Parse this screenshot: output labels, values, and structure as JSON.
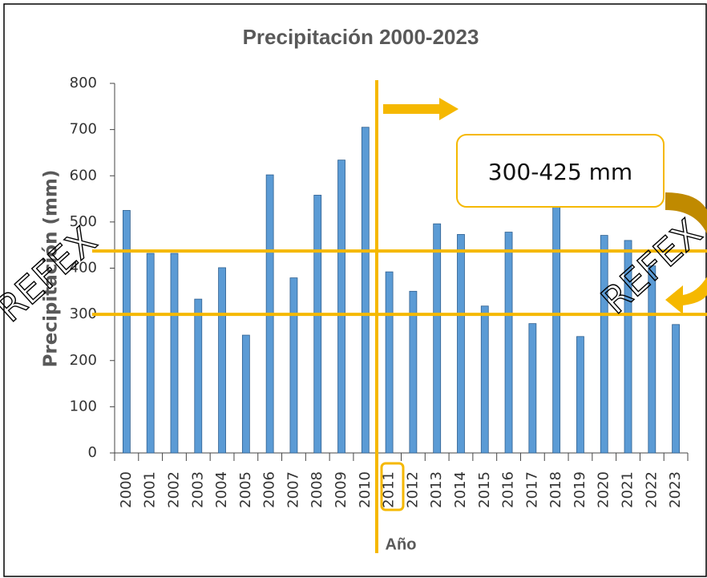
{
  "chart_data": {
    "type": "bar",
    "title": "Precipitación 2000-2023",
    "y_label": "Precipitación (mm)",
    "x_label": "Año",
    "categories": [
      "2000",
      "2001",
      "2002",
      "2003",
      "2004",
      "2005",
      "2006",
      "2007",
      "2008",
      "2009",
      "2010",
      "2011",
      "2012",
      "2013",
      "2014",
      "2015",
      "2016",
      "2017",
      "2018",
      "2019",
      "2020",
      "2021",
      "2022",
      "2023"
    ],
    "values": [
      525,
      432,
      432,
      333,
      401,
      255,
      602,
      379,
      558,
      634,
      705,
      392,
      350,
      496,
      473,
      318,
      478,
      280,
      535,
      252,
      471,
      460,
      405,
      278
    ],
    "color": "#5b9bd5",
    "ylim": [
      0,
      800
    ],
    "yticks": [
      0,
      100,
      200,
      300,
      400,
      500,
      600,
      700,
      800
    ],
    "grid": false,
    "hlines": [
      437,
      300
    ],
    "annotation": "300-425 mm",
    "watermark": "REFEX"
  }
}
